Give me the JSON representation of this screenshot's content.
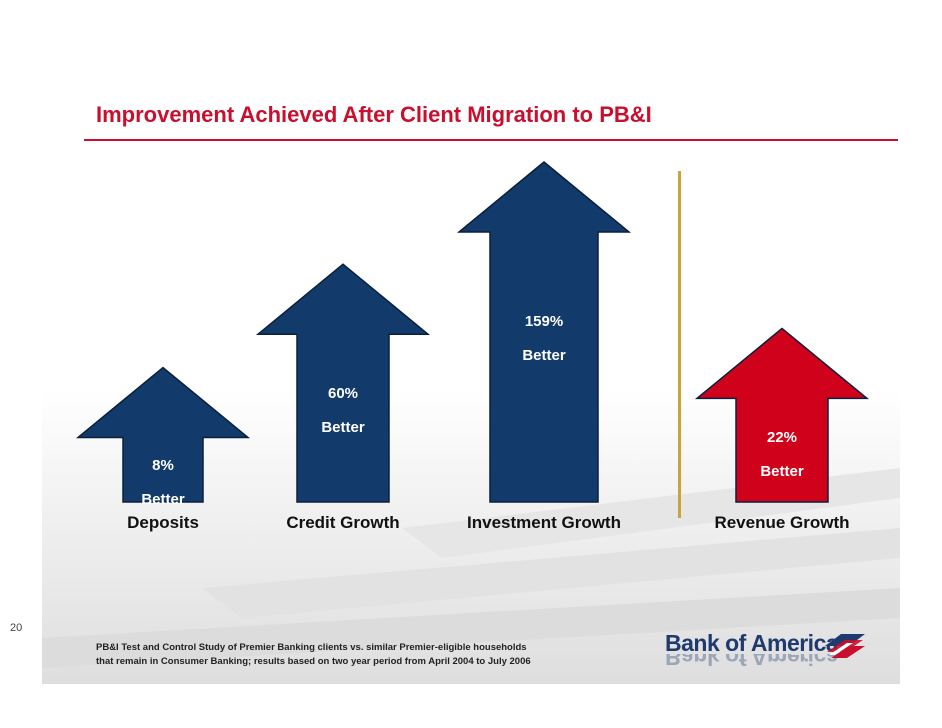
{
  "title": "Improvement Achieved After Client Migration to PB&I",
  "page_number": "20",
  "footnote": {
    "line1": "PB&I Test and Control Study of Premier Banking clients vs. similar Premier-eligible households",
    "line2": "that  remain in Consumer Banking; results based on two year period from April 2004 to July 2006"
  },
  "logo": {
    "text": "Bank of America",
    "icon": "bank-of-america-flag-icon"
  },
  "colors": {
    "title": "#c8102e",
    "navy_arrow": "#123a6b",
    "red_arrow": "#d0021b",
    "divider": "#c7a53a"
  },
  "chart_data": {
    "type": "bar",
    "categories": [
      "Deposits",
      "Credit Growth",
      "Investment Growth",
      "Revenue Growth"
    ],
    "values": [
      8,
      60,
      159,
      22
    ],
    "unit": "%",
    "bars": [
      {
        "category": "Deposits",
        "value_label": "8%",
        "sub_label": "Better",
        "color": "navy"
      },
      {
        "category": "Credit Growth",
        "value_label": "60%",
        "sub_label": "Better",
        "color": "navy"
      },
      {
        "category": "Investment Growth",
        "value_label": "159%",
        "sub_label": "Better",
        "color": "navy"
      },
      {
        "category": "Revenue Growth",
        "value_label": "22%",
        "sub_label": "Better",
        "color": "red"
      }
    ],
    "title": "Improvement Achieved After Client Migration to PB&I",
    "xlabel": "",
    "ylabel": "",
    "grid": false
  }
}
